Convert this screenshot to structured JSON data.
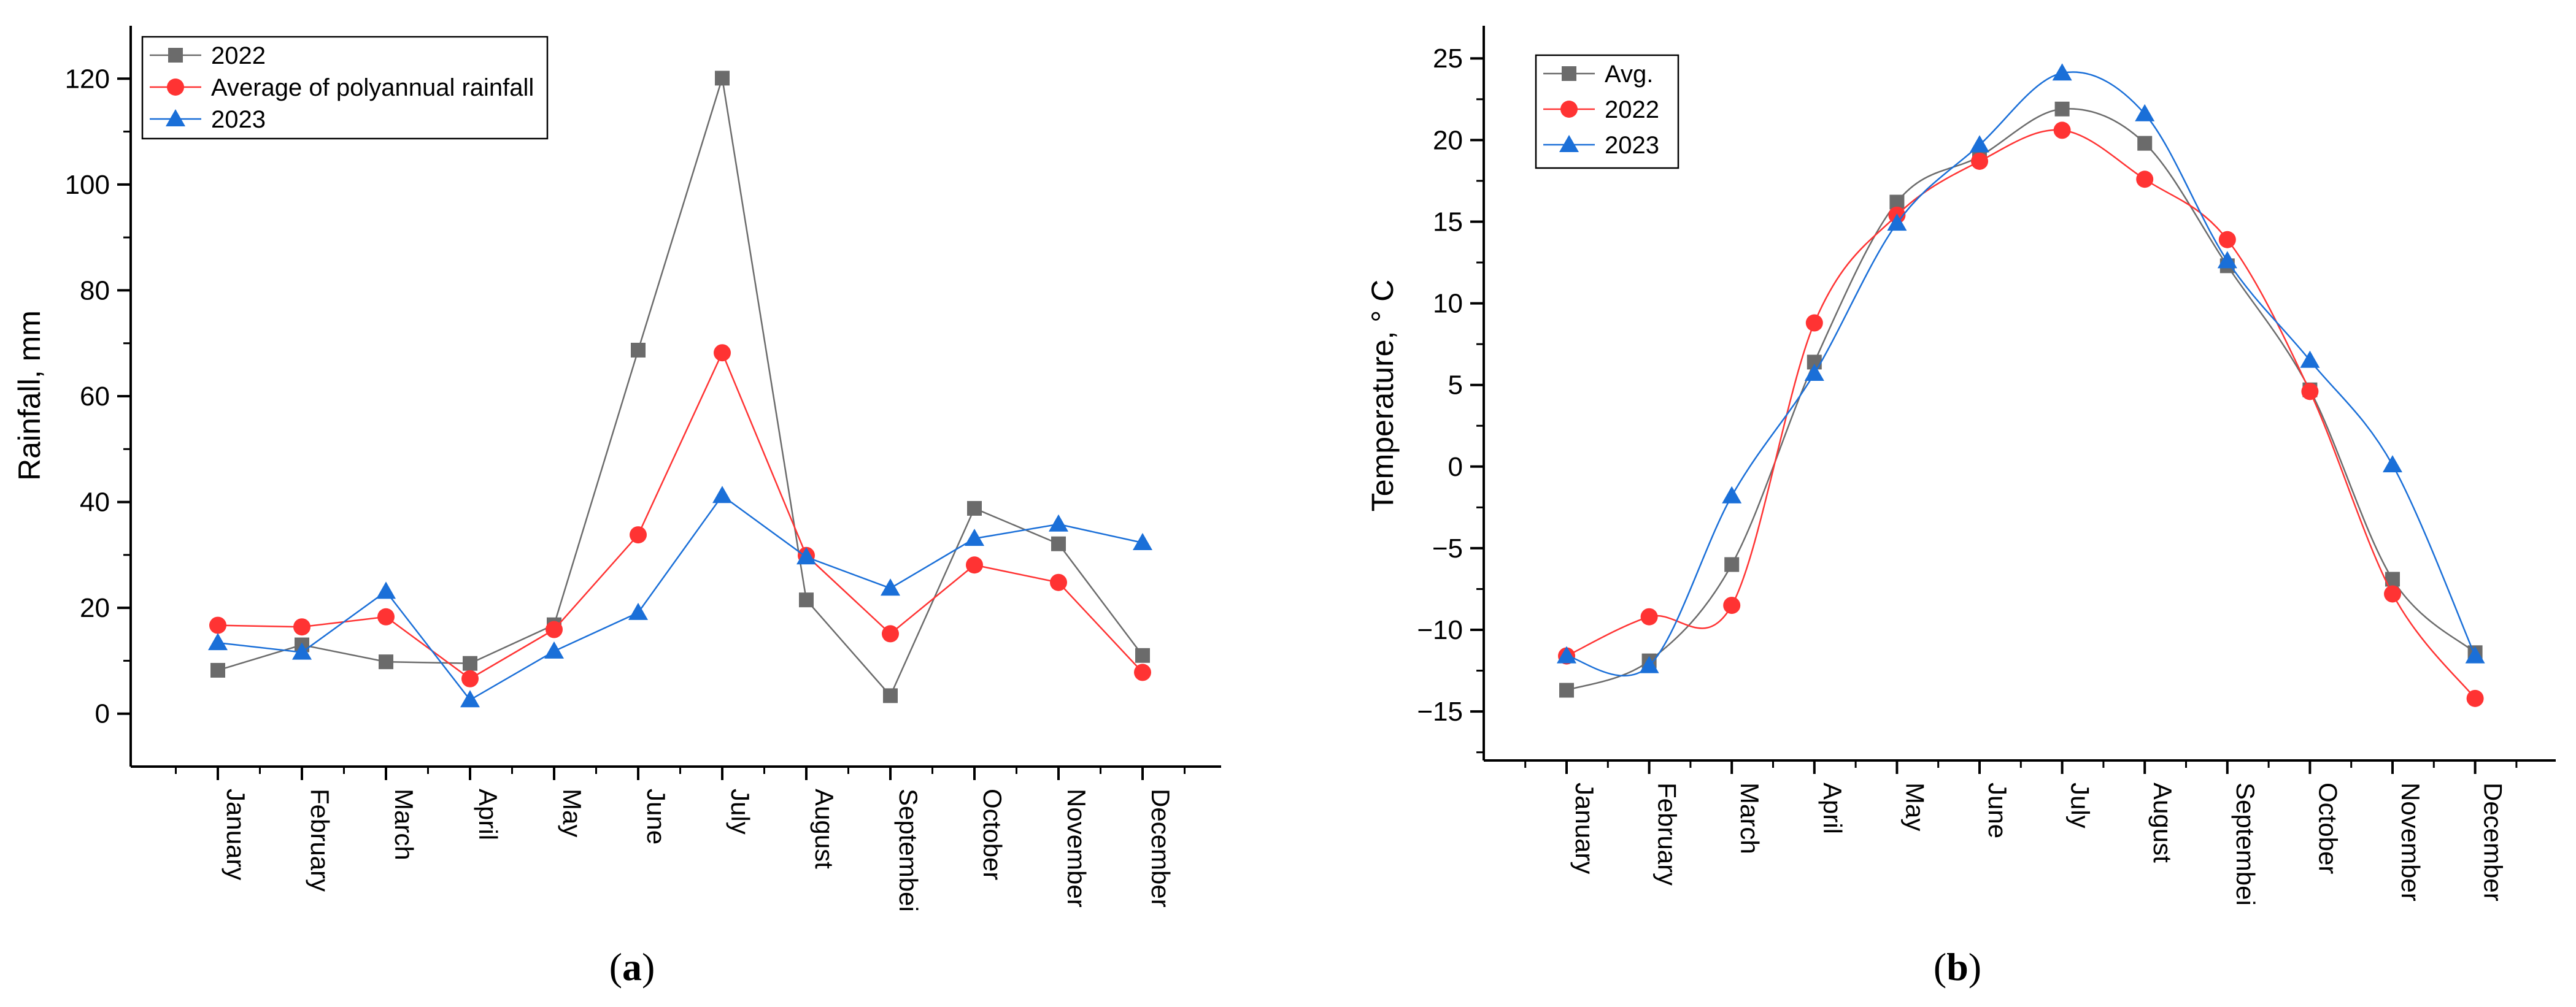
{
  "chart_data": [
    {
      "type": "line",
      "panel_label": "a",
      "ylabel": "Rainfall, mm",
      "xlabel": "",
      "categories": [
        "January",
        "February",
        "March",
        "April",
        "May",
        "June",
        "July",
        "August",
        "Septembei",
        "October",
        "November",
        "December"
      ],
      "ylim": [
        -10,
        130
      ],
      "yticks": [
        0,
        20,
        40,
        60,
        80,
        100,
        120
      ],
      "smooth": false,
      "legend_position": "top-left",
      "series": [
        {
          "name": "2022",
          "color": "#6b6b6b",
          "marker": "square",
          "values": [
            8.2,
            13.0,
            9.8,
            9.5,
            16.8,
            68.7,
            120.1,
            21.5,
            3.4,
            38.8,
            32.1,
            11.0
          ]
        },
        {
          "name": "Average of polyannual rainfall",
          "color": "#ff3333",
          "marker": "circle",
          "values": [
            16.7,
            16.4,
            18.3,
            6.6,
            15.9,
            33.8,
            68.2,
            29.9,
            15.1,
            28.1,
            24.8,
            7.8
          ]
        },
        {
          "name": "2023",
          "color": "#1a6fd8",
          "marker": "triangle",
          "values": [
            13.4,
            11.6,
            23.1,
            2.6,
            11.8,
            19.1,
            41.2,
            29.6,
            23.7,
            33.1,
            35.8,
            32.3
          ]
        }
      ]
    },
    {
      "type": "line",
      "panel_label": "b",
      "ylabel": "Temperature, ° C",
      "xlabel": "",
      "categories": [
        "January",
        "February",
        "March",
        "April",
        "May",
        "June",
        "July",
        "August",
        "Septembei",
        "October",
        "November",
        "December"
      ],
      "ylim": [
        -18,
        27
      ],
      "yticks": [
        -15,
        -10,
        -5,
        0,
        5,
        10,
        15,
        20,
        25
      ],
      "smooth": true,
      "legend_position": "top-left",
      "series": [
        {
          "name": "Avg.",
          "color": "#6b6b6b",
          "marker": "square",
          "values": [
            -13.7,
            -11.9,
            -6.0,
            6.4,
            16.2,
            19.0,
            21.9,
            19.8,
            12.3,
            4.7,
            -6.9,
            -11.4
          ]
        },
        {
          "name": "2022",
          "color": "#ff3333",
          "marker": "circle",
          "values": [
            -11.6,
            -9.2,
            -8.5,
            8.8,
            15.4,
            18.7,
            20.6,
            17.6,
            13.9,
            4.6,
            -7.8,
            -14.2
          ]
        },
        {
          "name": "2023",
          "color": "#1a6fd8",
          "marker": "triangle",
          "values": [
            -11.6,
            -12.2,
            -1.8,
            5.7,
            14.9,
            19.7,
            24.1,
            21.6,
            12.6,
            6.5,
            0.1,
            -11.6
          ]
        }
      ]
    }
  ]
}
